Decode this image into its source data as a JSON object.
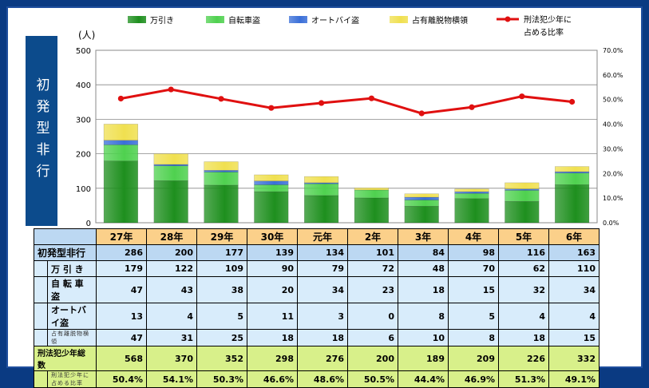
{
  "side_title": "初発型非行",
  "chart_data": {
    "type": "bar",
    "stacked": true,
    "categories": [
      "27年",
      "28年",
      "29年",
      "30年",
      "元年",
      "2年",
      "3年",
      "4年",
      "5年",
      "6年"
    ],
    "series": [
      {
        "name": "万引き",
        "values": [
          179,
          122,
          109,
          90,
          79,
          72,
          48,
          70,
          62,
          110
        ],
        "color": "#1e8f1e"
      },
      {
        "name": "自転車盗",
        "values": [
          47,
          43,
          38,
          20,
          34,
          23,
          18,
          15,
          32,
          34
        ],
        "color": "#4fd14f"
      },
      {
        "name": "オートバイ盗",
        "values": [
          13,
          4,
          5,
          11,
          3,
          0,
          8,
          5,
          4,
          4
        ],
        "color": "#3a6fd8"
      },
      {
        "name": "占有離脱物横領",
        "values": [
          47,
          31,
          25,
          18,
          18,
          6,
          10,
          8,
          18,
          15
        ],
        "color": "#f0e050"
      }
    ],
    "line": {
      "name": "刑法犯少年に占める比率",
      "values": [
        50.4,
        54.1,
        50.3,
        46.6,
        48.6,
        50.5,
        44.4,
        46.9,
        51.3,
        49.1
      ],
      "color": "#e01010"
    },
    "y_label": "(人)",
    "y_ticks": [
      "0",
      "100",
      "200",
      "300",
      "400",
      "500"
    ],
    "ylim": [
      0,
      500
    ],
    "y2_ticks": [
      "0.0%",
      "10.0%",
      "20.0%",
      "30.0%",
      "40.0%",
      "50.0%",
      "60.0%",
      "70.0%"
    ],
    "y2lim": [
      0,
      70
    ],
    "legend_line1": "刑法犯少年に",
    "legend_line2": "占める比率"
  },
  "table": {
    "years": [
      "27年",
      "28年",
      "29年",
      "30年",
      "元年",
      "2年",
      "3年",
      "4年",
      "5年",
      "6年"
    ],
    "total_label": "初発型非行",
    "totals": [
      "286",
      "200",
      "177",
      "139",
      "134",
      "101",
      "84",
      "98",
      "116",
      "163"
    ],
    "rows": [
      {
        "label": "万 引 き",
        "values": [
          "179",
          "122",
          "109",
          "90",
          "79",
          "72",
          "48",
          "70",
          "62",
          "110"
        ]
      },
      {
        "label": "自 転 車 盗",
        "values": [
          "47",
          "43",
          "38",
          "20",
          "34",
          "23",
          "18",
          "15",
          "32",
          "34"
        ]
      },
      {
        "label": "オートバイ盗",
        "values": [
          "13",
          "4",
          "5",
          "11",
          "3",
          "0",
          "8",
          "5",
          "4",
          "4"
        ]
      },
      {
        "label": "占有離脱物横領",
        "values": [
          "47",
          "31",
          "25",
          "18",
          "18",
          "6",
          "10",
          "8",
          "18",
          "15"
        ],
        "small": true
      }
    ],
    "juvenile_label": "刑法犯少年総数",
    "juvenile_values": [
      "568",
      "370",
      "352",
      "298",
      "276",
      "200",
      "189",
      "209",
      "226",
      "332"
    ],
    "rate_label": "刑法犯少年に占める比率",
    "rate_values": [
      "50.4%",
      "54.1%",
      "50.3%",
      "46.6%",
      "48.6%",
      "50.5%",
      "44.4%",
      "46.9%",
      "51.3%",
      "49.1%"
    ]
  }
}
